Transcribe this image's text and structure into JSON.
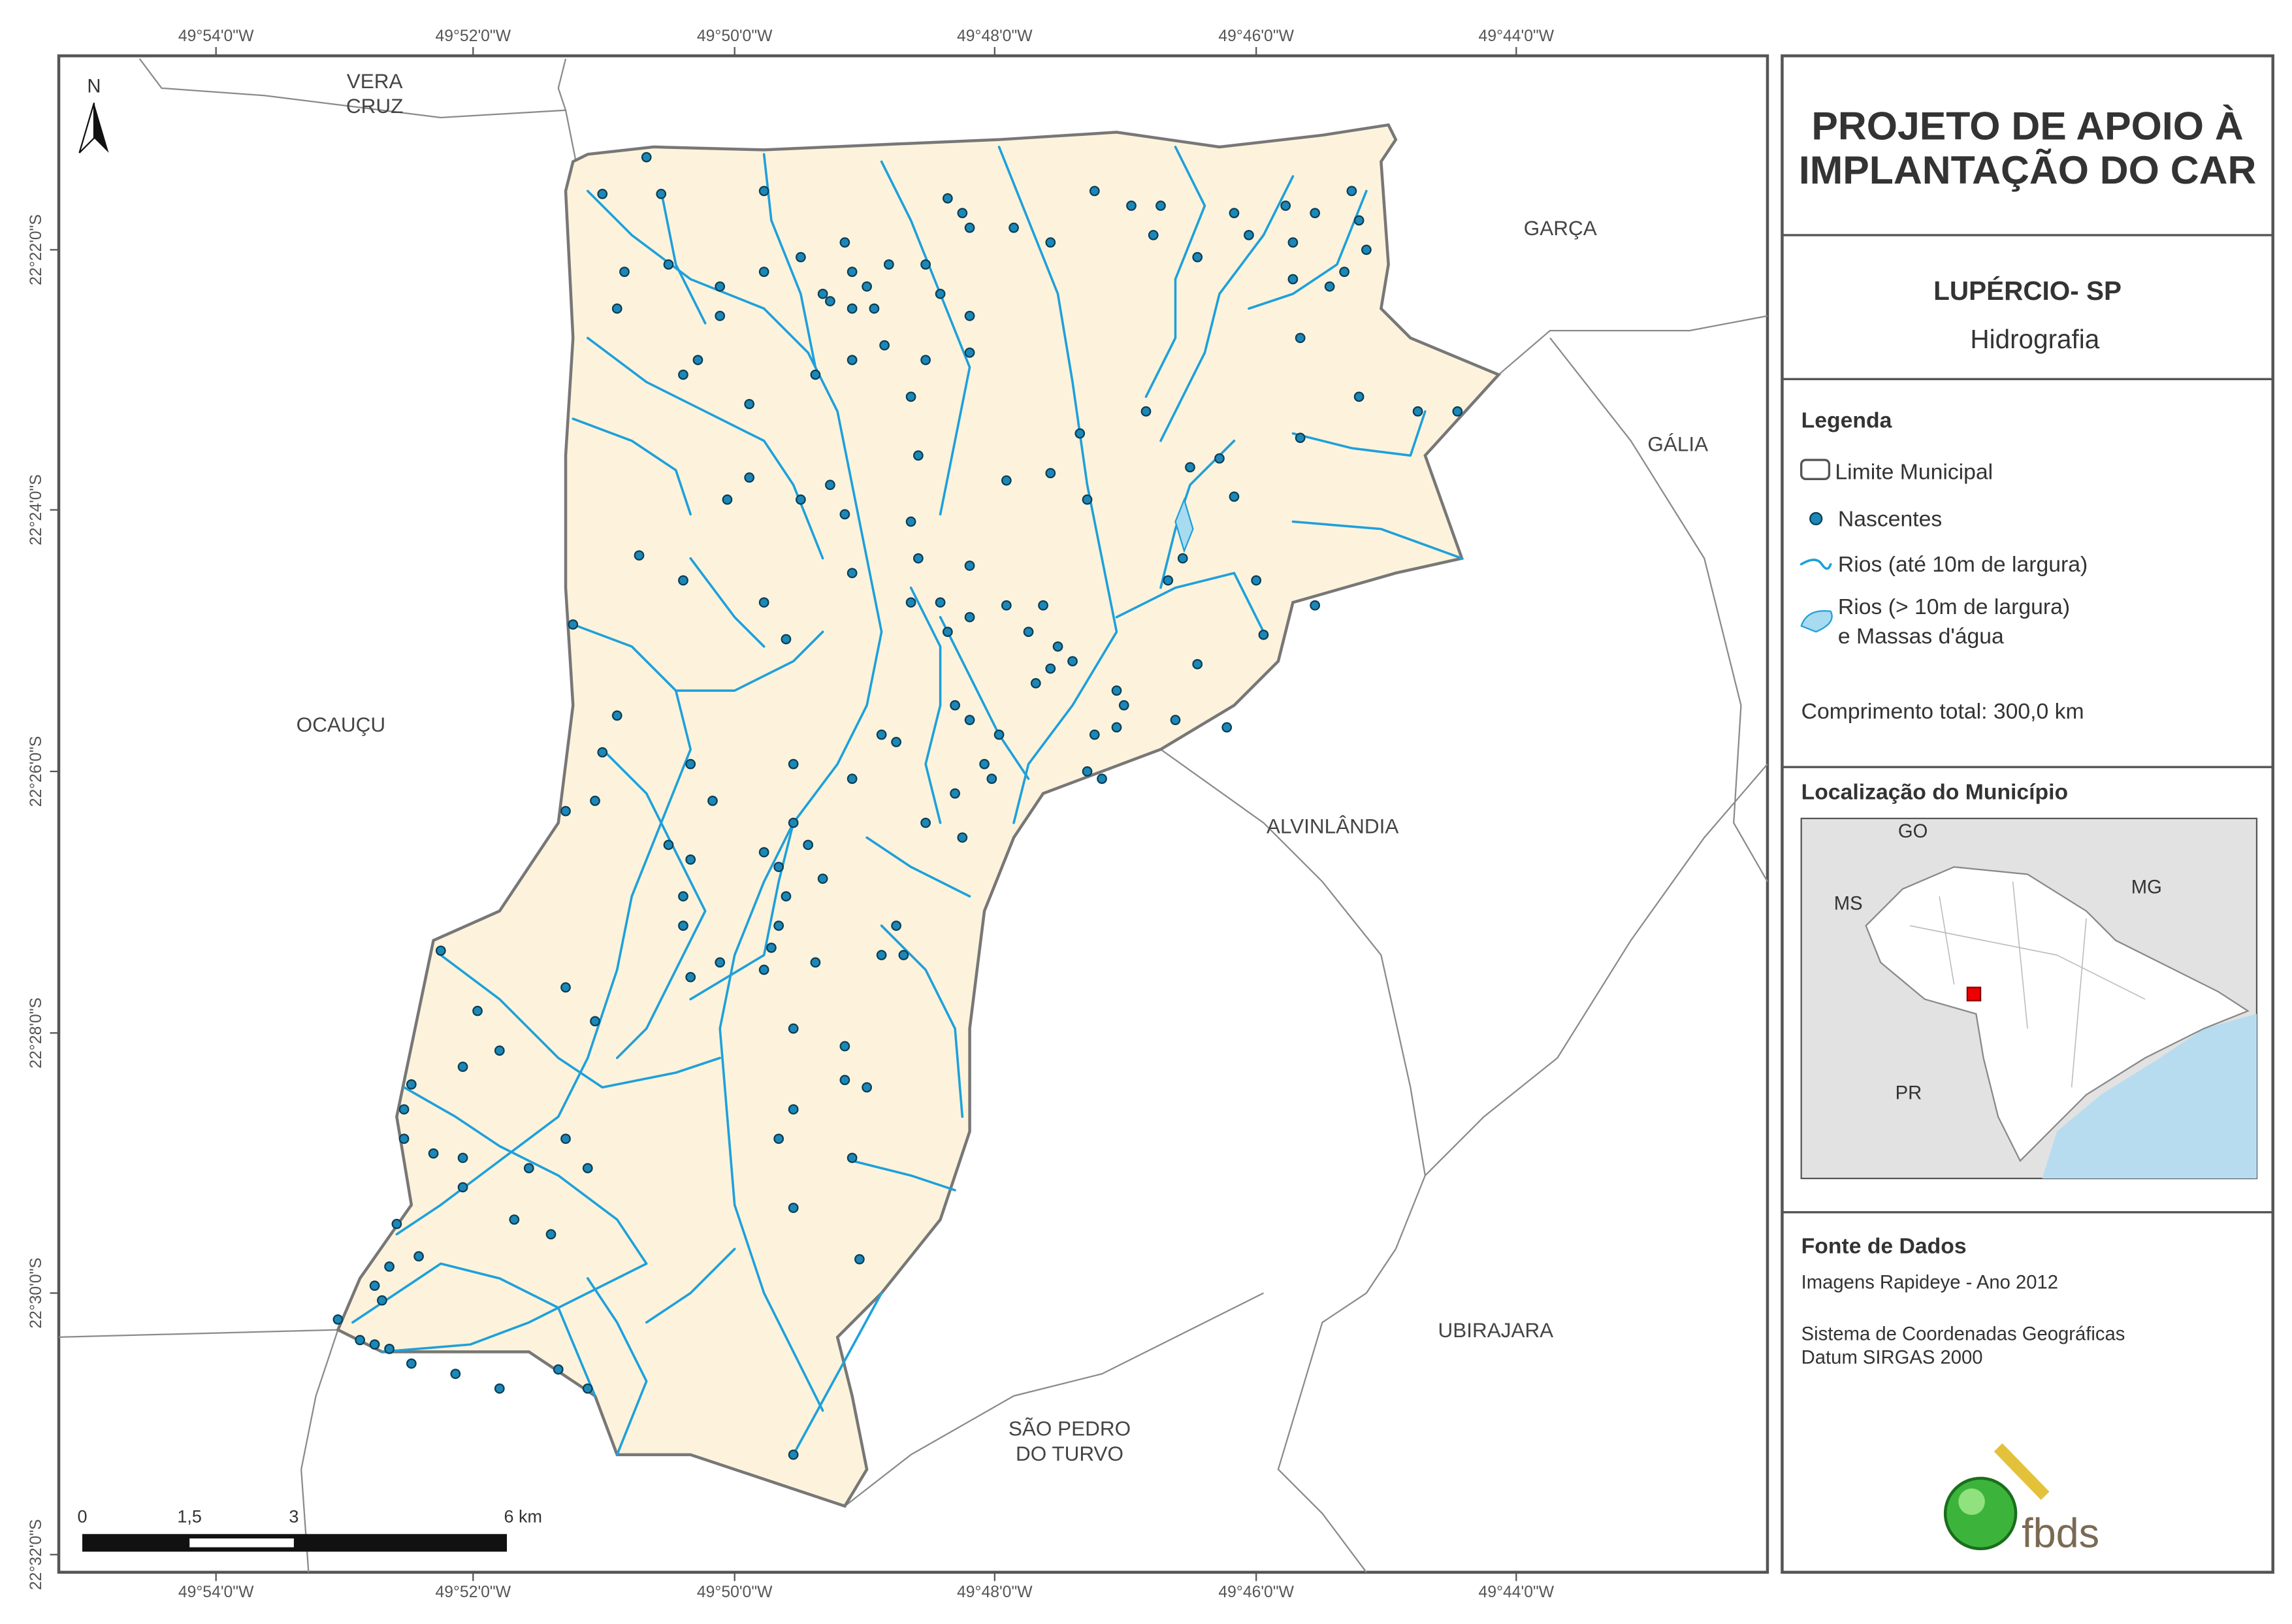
{
  "map": {
    "top_longitude_labels": [
      "49°54'0\"W",
      "49°52'0\"W",
      "49°50'0\"W",
      "49°48'0\"W",
      "49°46'0\"W",
      "49°44'0\"W"
    ],
    "bottom_longitude_labels": [
      "49°54'0\"W",
      "49°52'0\"W",
      "49°50'0\"W",
      "49°48'0\"W",
      "49°46'0\"W",
      "49°44'0\"W"
    ],
    "latitude_labels": [
      "22°22'0\"S",
      "22°24'0\"S",
      "22°26'0\"S",
      "22°28'0\"S",
      "22°30'0\"S",
      "22°32'0\"S"
    ],
    "north_label": "N",
    "places": [
      {
        "lines": [
          "VERA",
          "CRUZ"
        ]
      },
      {
        "lines": [
          "GARÇA"
        ]
      },
      {
        "lines": [
          "GÁLIA"
        ]
      },
      {
        "lines": [
          "OCAUÇU"
        ]
      },
      {
        "lines": [
          "ALVINLÂNDIA"
        ]
      },
      {
        "lines": [
          "UBIRAJARA"
        ]
      },
      {
        "lines": [
          "SÃO PEDRO",
          "DO TURVO"
        ]
      }
    ],
    "scale_labels": [
      "0",
      "1,5",
      "3",
      "6 km"
    ]
  },
  "panel": {
    "title_lines": [
      "PROJETO DE APOIO À",
      "IMPLANTAÇÃO DO CAR"
    ],
    "municipality": "LUPÉRCIO- SP",
    "theme": "Hidrografia",
    "legend_title": "Legenda",
    "legend_items": [
      "Limite Municipal",
      "Nascentes",
      "Rios (até 10m de largura)",
      "Rios (> 10m de largura)",
      "e Massas d'água"
    ],
    "total_length": "Comprimento total: 300,0 km",
    "location_title": "Localização do Município",
    "location_labels": [
      "GO",
      "MS",
      "MG",
      "PR"
    ],
    "source_title": "Fonte de Dados",
    "source_lines": [
      "Imagens Rapideye - Ano 2012",
      "Sistema de Coordenadas Geográficas",
      "Datum SIRGAS 2000"
    ],
    "logo_text": "fbds"
  }
}
